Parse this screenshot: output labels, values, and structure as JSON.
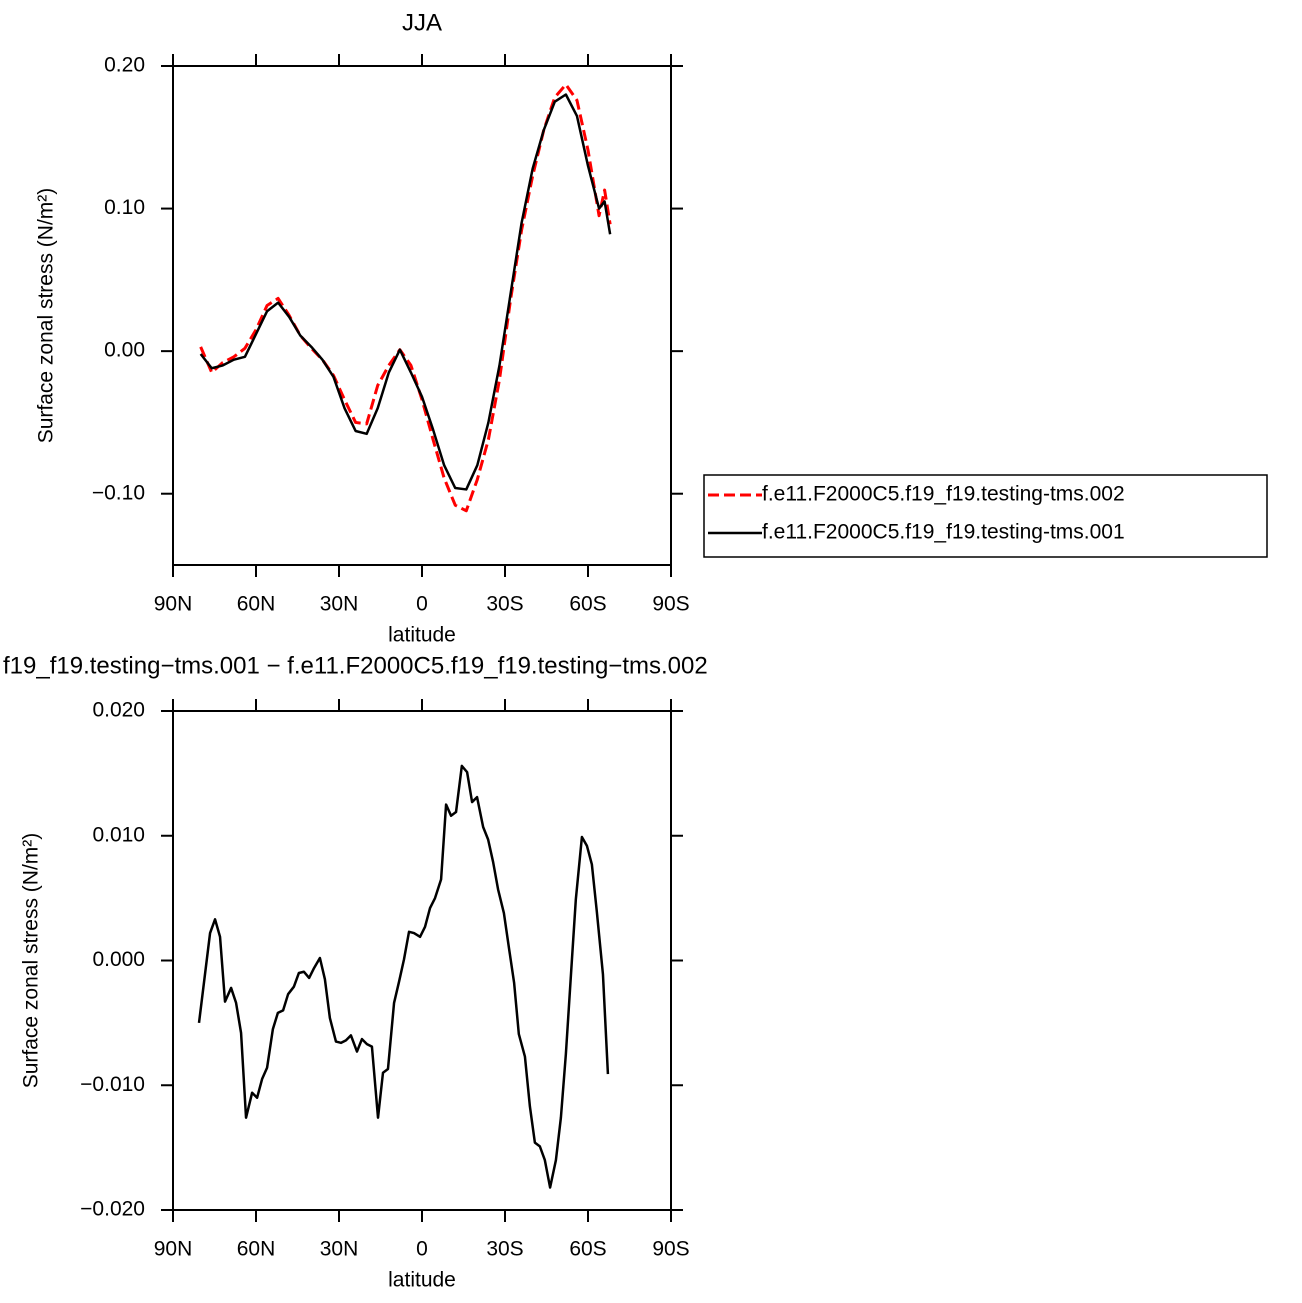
{
  "chart_data": [
    {
      "type": "line",
      "title": "JJA",
      "xlabel": "latitude",
      "ylabel": "Surface zonal stress (N/m²)",
      "xlim": [
        90,
        -90
      ],
      "xticks": [
        {
          "value": 90,
          "label": "90N"
        },
        {
          "value": 60,
          "label": "60N"
        },
        {
          "value": 30,
          "label": "30N"
        },
        0,
        {
          "value": -30,
          "label": "30S"
        },
        {
          "value": -60,
          "label": "60S"
        },
        {
          "value": -90,
          "label": "90S"
        }
      ],
      "ylim": [
        -0.15,
        0.2
      ],
      "yticks": [
        {
          "value": 0.2,
          "label": "0.20"
        },
        {
          "value": 0.1,
          "label": "0.10"
        },
        {
          "value": 0,
          "label": "0.00"
        },
        {
          "value": -0.1,
          "label": "−0.10"
        }
      ],
      "legend": "right",
      "x": [
        80,
        76,
        72,
        68,
        64,
        60,
        56,
        52,
        48,
        44,
        40,
        36,
        32,
        28,
        24,
        20,
        16,
        12,
        8,
        4,
        0,
        -4,
        -8,
        -12,
        -16,
        -20,
        -24,
        -28,
        -32,
        -36,
        -40,
        -44,
        -48,
        -52,
        -56,
        -60,
        -64,
        -66,
        -68
      ],
      "series": [
        {
          "name": "f.e11.F2000C5.f19_f19.testing-tms.002",
          "color": "#ff0000",
          "dash": "dashed",
          "values": [
            0.003,
            -0.015,
            -0.008,
            -0.004,
            0.002,
            0.015,
            0.032,
            0.037,
            0.025,
            0.011,
            0.002,
            -0.006,
            -0.017,
            -0.034,
            -0.05,
            -0.051,
            -0.024,
            -0.01,
            0.001,
            -0.01,
            -0.034,
            -0.062,
            -0.089,
            -0.108,
            -0.112,
            -0.09,
            -0.062,
            -0.02,
            0.036,
            0.085,
            0.123,
            0.155,
            0.178,
            0.187,
            0.176,
            0.141,
            0.095,
            0.113,
            0.089
          ]
        },
        {
          "name": "f.e11.F2000C5.f19_f19.testing-tms.001",
          "color": "#000000",
          "dash": "solid",
          "values": [
            -0.002,
            -0.012,
            -0.01,
            -0.006,
            -0.004,
            0.012,
            0.028,
            0.034,
            0.024,
            0.011,
            0.003,
            -0.006,
            -0.018,
            -0.04,
            -0.056,
            -0.058,
            -0.04,
            -0.015,
            0.001,
            -0.015,
            -0.032,
            -0.055,
            -0.08,
            -0.096,
            -0.097,
            -0.08,
            -0.05,
            -0.01,
            0.04,
            0.09,
            0.128,
            0.155,
            0.175,
            0.18,
            0.165,
            0.13,
            0.1,
            0.105,
            0.082
          ]
        }
      ]
    },
    {
      "type": "line",
      "title": "f19_f19.testing−tms.001 − f.e11.F2000C5.f19_f19.testing−tms.002",
      "xlabel": "latitude",
      "ylabel": "Surface zonal stress (N/m²)",
      "xlim": [
        90,
        -90
      ],
      "xticks": [
        {
          "value": 90,
          "label": "90N"
        },
        {
          "value": 60,
          "label": "60N"
        },
        {
          "value": 30,
          "label": "30N"
        },
        0,
        {
          "value": -30,
          "label": "30S"
        },
        {
          "value": -60,
          "label": "60S"
        },
        {
          "value": -90,
          "label": "90S"
        }
      ],
      "ylim": [
        -0.02,
        0.02
      ],
      "yticks": [
        {
          "value": 0.02,
          "label": "0.020"
        },
        {
          "value": 0.01,
          "label": "0.010"
        },
        {
          "value": 0,
          "label": "0.000"
        },
        {
          "value": -0.01,
          "label": "−0.010"
        },
        {
          "value": -0.02,
          "label": "−0.020"
        }
      ],
      "x": [
        80.6,
        76.6,
        74.8,
        73.0,
        71.2,
        69.0,
        67.2,
        65.4,
        63.6,
        61.4,
        59.6,
        57.8,
        56.0,
        53.9,
        52.1,
        50.2,
        48.4,
        46.3,
        44.5,
        42.7,
        40.8,
        39.0,
        36.9,
        35.1,
        33.3,
        31.1,
        29.3,
        27.5,
        25.7,
        23.5,
        21.7,
        19.9,
        18.1,
        15.9,
        14.1,
        12.3,
        10.1,
        8.3,
        6.5,
        4.7,
        2.9,
        0.7,
        -1.1,
        -2.9,
        -4.7,
        -6.9,
        -8.7,
        -10.5,
        -12.3,
        -14.4,
        -16.3,
        -18.1,
        -19.9,
        -22.1,
        -23.9,
        -25.7,
        -27.5,
        -29.6,
        -31.5,
        -33.3,
        -35.0,
        -37.2,
        -39.0,
        -40.8,
        -42.6,
        -44.4,
        -46.3,
        -48.4,
        -50.2,
        -52.0,
        -54.2,
        -55.6,
        -57.8,
        -59.6,
        -61.4,
        -63.2,
        -65.4,
        -67.2
      ],
      "series": [
        {
          "color": "#000000",
          "dash": "solid",
          "values": [
            -0.005,
            0.0022,
            0.0033,
            0.0019,
            -0.0033,
            -0.0022,
            -0.0034,
            -0.0058,
            -0.0126,
            -0.0106,
            -0.011,
            -0.0095,
            -0.0086,
            -0.0055,
            -0.0042,
            -0.004,
            -0.0027,
            -0.0021,
            -0.001,
            -0.0009,
            -0.0014,
            -0.0006,
            0.0002,
            -0.0015,
            -0.0046,
            -0.0065,
            -0.0066,
            -0.0064,
            -0.006,
            -0.0073,
            -0.0063,
            -0.0067,
            -0.0069,
            -0.0126,
            -0.009,
            -0.0087,
            -0.0034,
            -0.0017,
            0.0001,
            0.0023,
            0.0022,
            0.0019,
            0.0027,
            0.0042,
            0.005,
            0.0065,
            0.0125,
            0.0116,
            0.0119,
            0.0156,
            0.0151,
            0.0127,
            0.0131,
            0.0107,
            0.0097,
            0.0079,
            0.0057,
            0.0038,
            0.0009,
            -0.0018,
            -0.0059,
            -0.0077,
            -0.0117,
            -0.0146,
            -0.0149,
            -0.016,
            -0.0182,
            -0.016,
            -0.0126,
            -0.0075,
            0.0001,
            0.0049,
            0.0099,
            0.0092,
            0.0077,
            0.0039,
            -0.0011,
            -0.0091
          ]
        }
      ]
    }
  ]
}
